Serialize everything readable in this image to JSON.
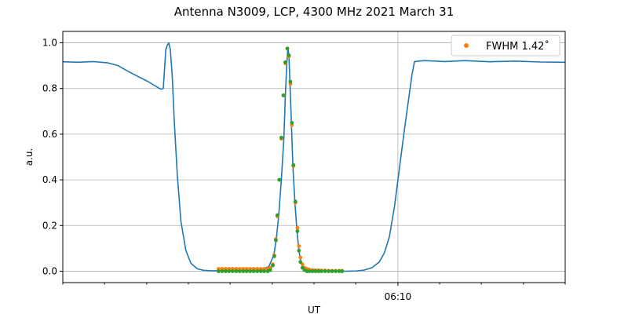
{
  "chart_data": {
    "type": "line",
    "title": "Antenna N3009, LCP, 4300 MHz 2021 March 31",
    "xlabel": "UT",
    "ylabel": "a.u.",
    "xlim": [
      0,
      1
    ],
    "ylim": [
      -0.05,
      1.05
    ],
    "y_ticks": [
      0.0,
      0.2,
      0.4,
      0.6,
      0.8,
      1.0
    ],
    "y_tick_labels": [
      "0.0",
      "0.2",
      "0.4",
      "0.6",
      "0.8",
      "1.0"
    ],
    "x_ticks": [
      {
        "x": 0.667,
        "label": "06:10"
      }
    ],
    "x_minor_ticks": [
      0.0,
      0.083,
      0.167,
      0.25,
      0.333,
      0.417,
      0.5,
      0.583,
      0.75,
      0.833,
      0.917,
      1.0
    ],
    "grid": true,
    "legend": {
      "placement": "top-right",
      "entries": [
        {
          "label": "FWHM 1.42$^\\circ$",
          "display": "FWHM 1.42˚",
          "color": "#ff7f0e"
        }
      ]
    },
    "series": [
      {
        "style": "line",
        "color": "#1f77b4",
        "x": [
          0.0,
          0.03,
          0.06,
          0.09,
          0.11,
          0.13,
          0.15,
          0.17,
          0.185,
          0.195,
          0.2,
          0.205,
          0.208,
          0.211,
          0.214,
          0.218,
          0.222,
          0.228,
          0.235,
          0.245,
          0.255,
          0.268,
          0.28,
          0.295,
          0.31,
          0.33,
          0.36,
          0.39,
          0.41,
          0.42,
          0.425,
          0.43,
          0.435,
          0.44,
          0.443,
          0.446,
          0.448,
          0.45,
          0.452,
          0.455,
          0.458,
          0.462,
          0.466,
          0.47,
          0.474,
          0.48,
          0.49,
          0.5,
          0.52,
          0.56,
          0.585,
          0.6,
          0.615,
          0.63,
          0.64,
          0.65,
          0.66,
          0.67,
          0.68,
          0.69,
          0.695,
          0.7,
          0.72,
          0.76,
          0.8,
          0.85,
          0.9,
          0.95,
          1.0
        ],
        "values": [
          0.917,
          0.915,
          0.918,
          0.912,
          0.9,
          0.875,
          0.852,
          0.83,
          0.81,
          0.797,
          0.8,
          0.97,
          0.99,
          1.0,
          0.97,
          0.85,
          0.65,
          0.42,
          0.22,
          0.09,
          0.035,
          0.01,
          0.004,
          0.002,
          0.002,
          0.002,
          0.002,
          0.003,
          0.02,
          0.07,
          0.14,
          0.25,
          0.4,
          0.58,
          0.77,
          0.91,
          0.975,
          0.95,
          0.83,
          0.65,
          0.46,
          0.3,
          0.18,
          0.09,
          0.04,
          0.015,
          0.006,
          0.003,
          0.002,
          0.0,
          0.001,
          0.005,
          0.015,
          0.04,
          0.08,
          0.15,
          0.28,
          0.45,
          0.62,
          0.78,
          0.86,
          0.918,
          0.922,
          0.918,
          0.922,
          0.917,
          0.92,
          0.916,
          0.915
        ]
      },
      {
        "style": "points",
        "name": "FWHM 1.42˚",
        "color": "#ff7f0e",
        "x": [
          0.31,
          0.317,
          0.324,
          0.331,
          0.338,
          0.345,
          0.352,
          0.359,
          0.366,
          0.373,
          0.38,
          0.387,
          0.394,
          0.401,
          0.408,
          0.413,
          0.418,
          0.421,
          0.424,
          0.427,
          0.431,
          0.435,
          0.439,
          0.443,
          0.447,
          0.45,
          0.453,
          0.456,
          0.459,
          0.463,
          0.467,
          0.47,
          0.473,
          0.477,
          0.481,
          0.486,
          0.491,
          0.497,
          0.503,
          0.509,
          0.515,
          0.522,
          0.529,
          0.536,
          0.543,
          0.55,
          0.556
        ],
        "values": [
          0.01,
          0.01,
          0.01,
          0.01,
          0.01,
          0.01,
          0.01,
          0.01,
          0.01,
          0.01,
          0.01,
          0.01,
          0.01,
          0.01,
          0.01,
          0.015,
          0.03,
          0.07,
          0.14,
          0.24,
          0.4,
          0.58,
          0.77,
          0.91,
          0.975,
          0.94,
          0.82,
          0.64,
          0.46,
          0.3,
          0.19,
          0.11,
          0.06,
          0.03,
          0.015,
          0.01,
          0.006,
          0.005,
          0.004,
          0.004,
          0.003,
          0.003,
          0.002,
          0.002,
          0.002,
          0.002,
          0.002
        ]
      },
      {
        "style": "points",
        "color": "#2ca02c",
        "x": [
          0.31,
          0.317,
          0.324,
          0.331,
          0.338,
          0.345,
          0.352,
          0.359,
          0.366,
          0.373,
          0.38,
          0.387,
          0.394,
          0.401,
          0.408,
          0.413,
          0.418,
          0.421,
          0.424,
          0.427,
          0.431,
          0.435,
          0.439,
          0.443,
          0.447,
          0.45,
          0.453,
          0.456,
          0.459,
          0.463,
          0.467,
          0.47,
          0.473,
          0.477,
          0.481,
          0.486,
          0.491,
          0.497,
          0.503,
          0.509,
          0.515,
          0.522,
          0.529,
          0.536,
          0.543,
          0.55,
          0.556
        ],
        "values": [
          0.0,
          0.0,
          0.0,
          0.0,
          0.0,
          0.0,
          0.0,
          0.0,
          0.0,
          0.0,
          0.0,
          0.0,
          0.0,
          0.0,
          0.0,
          0.005,
          0.025,
          0.065,
          0.135,
          0.245,
          0.4,
          0.585,
          0.77,
          0.915,
          0.975,
          0.945,
          0.83,
          0.65,
          0.465,
          0.305,
          0.175,
          0.09,
          0.04,
          0.015,
          0.005,
          0.0,
          0.0,
          0.0,
          0.0,
          0.0,
          0.0,
          0.0,
          0.0,
          0.0,
          0.0,
          0.0,
          0.0
        ]
      }
    ]
  }
}
